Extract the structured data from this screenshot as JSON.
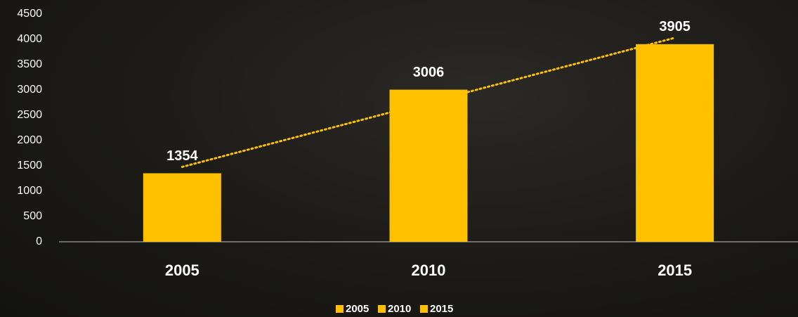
{
  "chart_data": {
    "type": "bar",
    "categories": [
      "2005",
      "2010",
      "2015"
    ],
    "values": [
      1354,
      3006,
      3905
    ],
    "color": "#ffc000",
    "ylim": [
      0,
      4500
    ],
    "yticks": [
      0,
      500,
      1000,
      1500,
      2000,
      2500,
      3000,
      3500,
      4000,
      4500
    ],
    "grid": false,
    "trendline": true,
    "legend": "bottom"
  }
}
